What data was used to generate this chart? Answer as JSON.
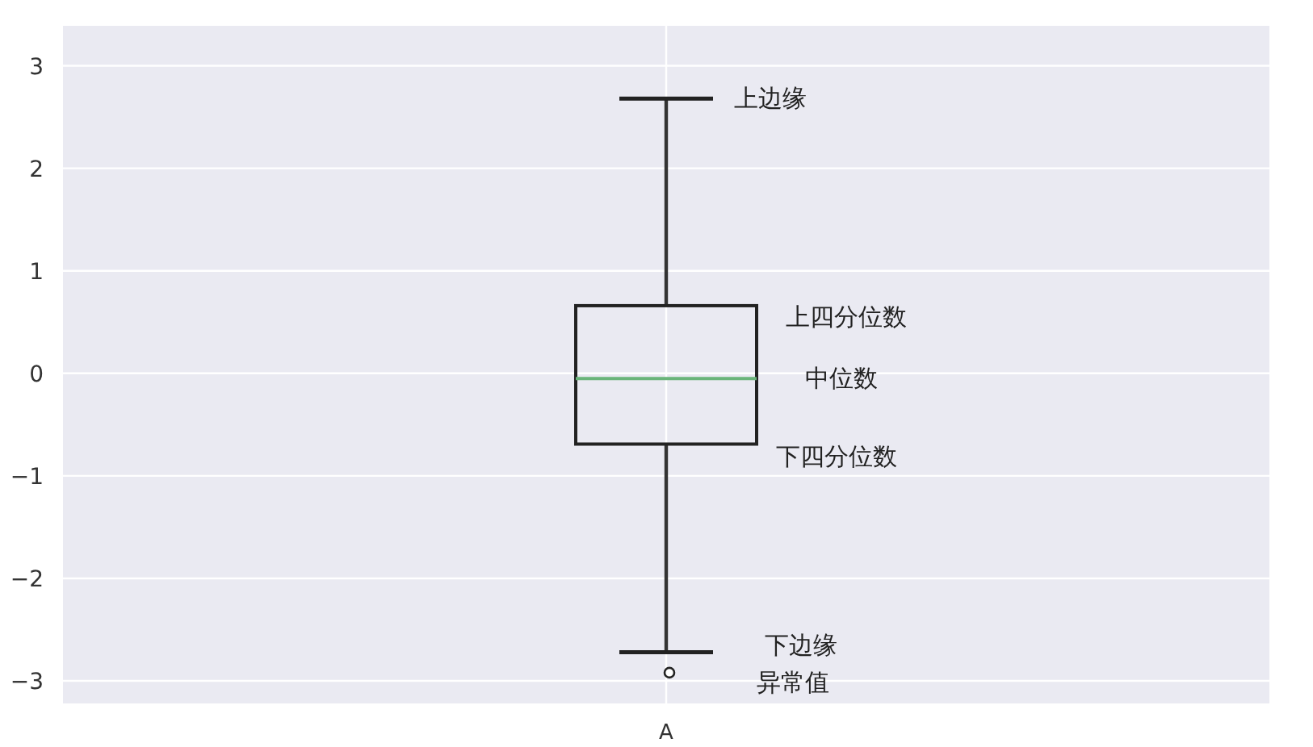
{
  "chart_data": {
    "type": "box",
    "categories": [
      "A"
    ],
    "boxes": [
      {
        "low": -2.72,
        "q1": -0.69,
        "median": -0.05,
        "q3": 0.66,
        "high": 2.68,
        "outliers": [
          -2.92
        ]
      }
    ],
    "ylim": [
      -3.22,
      3.39
    ],
    "yticks": [
      {
        "value": -3,
        "label": "−3"
      },
      {
        "value": -2,
        "label": "−2"
      },
      {
        "value": -1,
        "label": "−1"
      },
      0,
      1,
      2,
      3
    ],
    "grid": true,
    "annotations": [
      "上边缘",
      "上四分位数",
      "中位数",
      "下四分位数",
      "下边缘",
      "异常值"
    ]
  }
}
